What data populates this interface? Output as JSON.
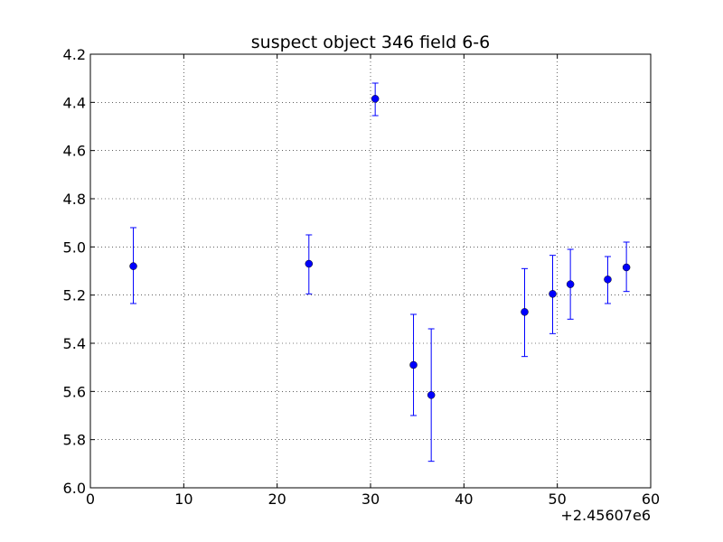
{
  "chart_data": {
    "type": "scatter",
    "title": "suspect object 346 field 6-6",
    "xlabel": "",
    "ylabel": "",
    "x_offset_label": "+2.45607e6",
    "xlim": [
      0,
      60
    ],
    "ylim": [
      4.2,
      6.0
    ],
    "y_inverted": true,
    "grid": true,
    "x_ticks": [
      "0",
      "10",
      "20",
      "30",
      "40",
      "50",
      "60"
    ],
    "y_ticks": [
      "4.2",
      "4.4",
      "4.6",
      "4.8",
      "5.0",
      "5.2",
      "5.4",
      "5.6",
      "5.8",
      "6.0"
    ],
    "marker_color": "#0000ff",
    "series": [
      {
        "points": [
          {
            "x": 4.6,
            "y": 5.08,
            "yerr_low": 4.92,
            "yerr_high": 5.235
          },
          {
            "x": 23.4,
            "y": 5.07,
            "yerr_low": 4.95,
            "yerr_high": 5.195
          },
          {
            "x": 30.5,
            "y": 4.385,
            "yerr_low": 4.32,
            "yerr_high": 4.455
          },
          {
            "x": 34.6,
            "y": 5.49,
            "yerr_low": 5.28,
            "yerr_high": 5.7
          },
          {
            "x": 36.5,
            "y": 5.615,
            "yerr_low": 5.34,
            "yerr_high": 5.89
          },
          {
            "x": 46.5,
            "y": 5.27,
            "yerr_low": 5.09,
            "yerr_high": 5.455
          },
          {
            "x": 49.5,
            "y": 5.195,
            "yerr_low": 5.035,
            "yerr_high": 5.36
          },
          {
            "x": 51.4,
            "y": 5.155,
            "yerr_low": 5.01,
            "yerr_high": 5.3
          },
          {
            "x": 55.4,
            "y": 5.135,
            "yerr_low": 5.04,
            "yerr_high": 5.235
          },
          {
            "x": 57.4,
            "y": 5.085,
            "yerr_low": 4.98,
            "yerr_high": 5.185
          }
        ]
      }
    ]
  }
}
